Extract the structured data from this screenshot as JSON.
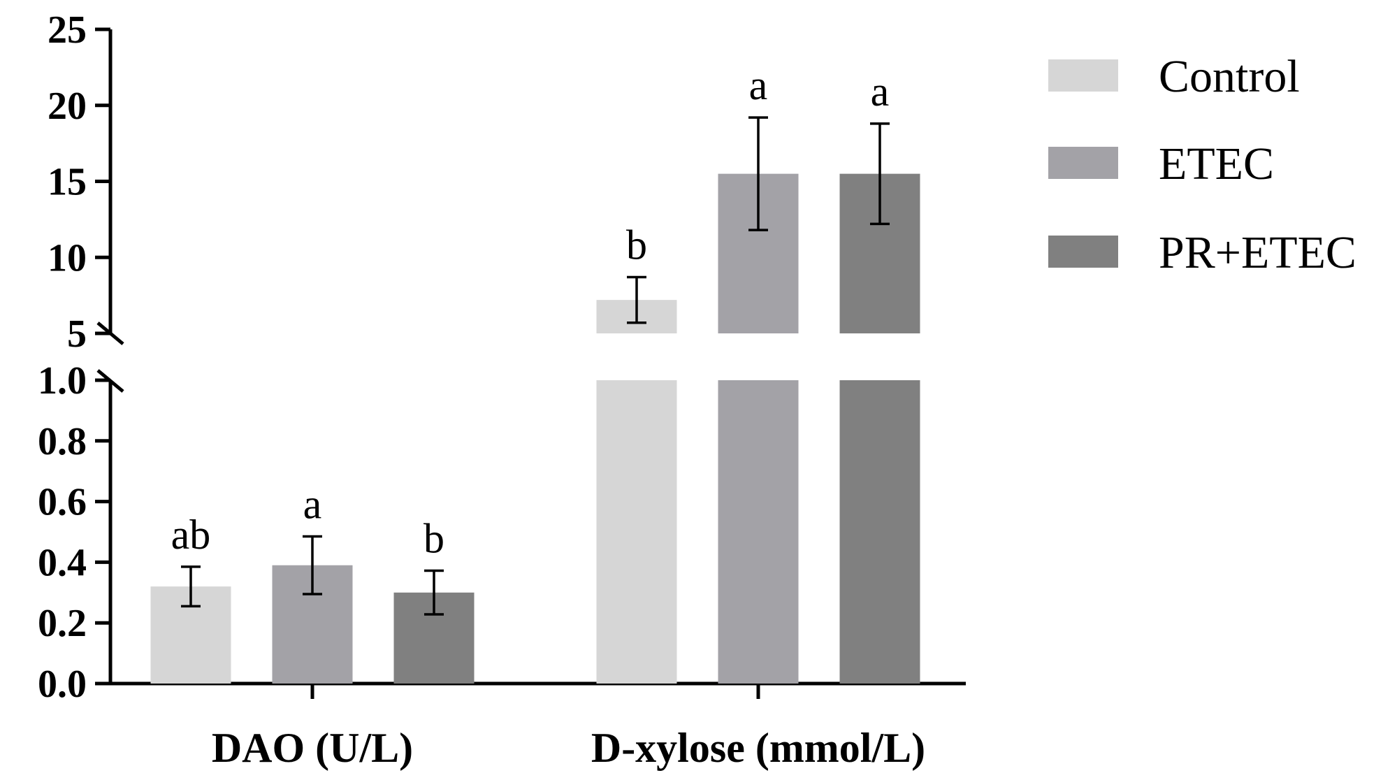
{
  "chart_data": {
    "type": "bar",
    "title": "",
    "xlabel": "",
    "ylabel": "",
    "categories": [
      "DAO (U/L)",
      "D-xylose (mmol/L)"
    ],
    "series": [
      {
        "name": "Control",
        "color": "#d6d6d6",
        "values": [
          0.32,
          7.2
        ],
        "errors": [
          0.065,
          1.5
        ],
        "significance": [
          "ab",
          "b"
        ]
      },
      {
        "name": "ETEC",
        "color": "#a3a2a7",
        "values": [
          0.39,
          15.5
        ],
        "errors": [
          0.095,
          3.7
        ],
        "significance": [
          "a",
          "a"
        ]
      },
      {
        "name": "PR+ETEC",
        "color": "#808080",
        "values": [
          0.3,
          15.5
        ],
        "errors": [
          0.072,
          3.3
        ],
        "significance": [
          "b",
          "a"
        ]
      }
    ],
    "y_axis_broken": true,
    "y_segments": [
      {
        "range": [
          0,
          1.0
        ],
        "ticks": [
          0.0,
          0.2,
          0.4,
          0.6,
          0.8,
          1.0
        ],
        "tick_labels": [
          "0.0",
          "0.2",
          "0.4",
          "0.6",
          "0.8",
          "1.0"
        ]
      },
      {
        "range": [
          5,
          25
        ],
        "ticks": [
          5,
          10,
          15,
          20,
          25
        ],
        "tick_labels": [
          "5",
          "10",
          "15",
          "20",
          "25"
        ]
      }
    ],
    "legend": {
      "position": "top-right",
      "entries": [
        "Control",
        "ETEC",
        "PR+ETEC"
      ]
    }
  }
}
